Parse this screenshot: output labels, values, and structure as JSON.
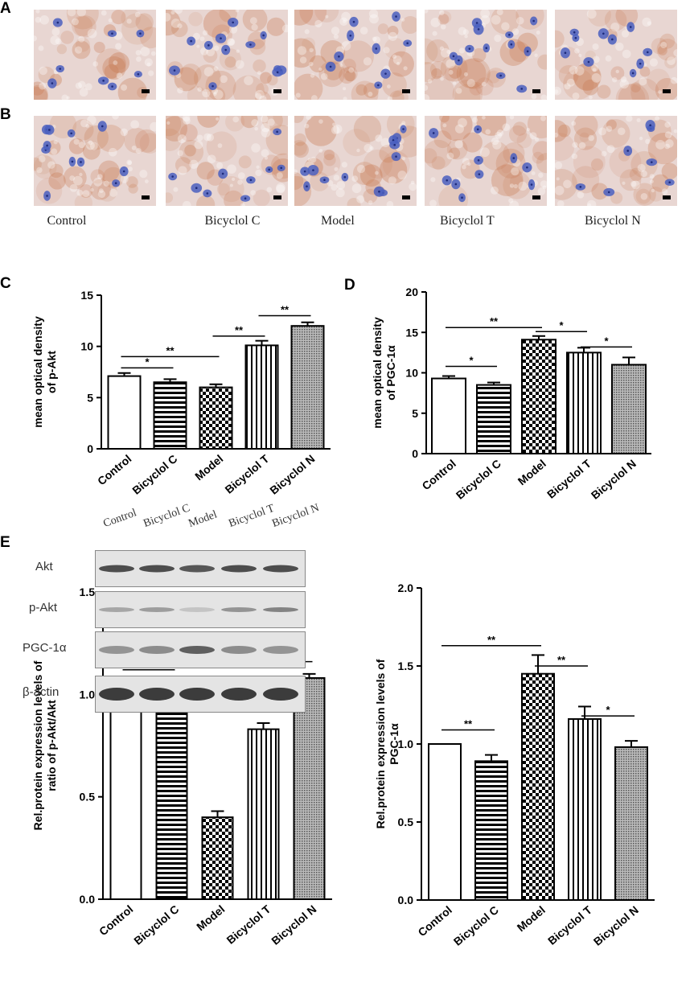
{
  "panels": {
    "a": "A",
    "b": "B",
    "c": "C",
    "d": "D",
    "e": "E"
  },
  "micro_groups": [
    "Control",
    "Bicyclol C",
    "Model",
    "Bicyclol T",
    "Bicyclol N"
  ],
  "blot": {
    "lanes": [
      "Control",
      "Bicyclol C",
      "Model",
      "Bicyclol T",
      "Bicyclol N"
    ],
    "rows": [
      "Akt",
      "p-Akt",
      "PGC-1α",
      "β-actin"
    ],
    "colors": {
      "membrane": "#e4e4e4",
      "band": "#333333"
    }
  },
  "colors": {
    "bar_stroke": "#000000",
    "bar_fill": "#ffffff",
    "tissue": "#e8d6d2",
    "nuclei": "#4a5fbf",
    "stain": "#c87a52"
  },
  "chart_data": [
    {
      "id": "chartC",
      "type": "bar",
      "categories": [
        "Control",
        "Bicyclol C",
        "Model",
        "Bicyclol T",
        "Bicyclol N"
      ],
      "values": [
        7.1,
        6.5,
        6.0,
        10.1,
        12.0
      ],
      "errors": [
        0.3,
        0.3,
        0.3,
        0.45,
        0.35
      ],
      "patterns": [
        "none",
        "hlines",
        "checker",
        "vlines",
        "dots"
      ],
      "ylabel": [
        "mean optical density",
        "of p-Akt"
      ],
      "ylim": [
        0,
        15
      ],
      "yticks": [
        0,
        5,
        10,
        15
      ],
      "significance": [
        {
          "from": 0,
          "to": 1,
          "y": 7.9,
          "label": "*"
        },
        {
          "from": 0,
          "to": 2,
          "y": 9.0,
          "label": "**"
        },
        {
          "from": 2,
          "to": 3,
          "y": 11.0,
          "label": "**"
        },
        {
          "from": 3,
          "to": 4,
          "y": 13.0,
          "label": "**"
        }
      ]
    },
    {
      "id": "chartD",
      "type": "bar",
      "categories": [
        "Control",
        "Bicyclol C",
        "Model",
        "Bicyclol T",
        "Bicyclol N"
      ],
      "values": [
        9.3,
        8.5,
        14.1,
        12.5,
        11.0
      ],
      "errors": [
        0.3,
        0.3,
        0.45,
        0.6,
        0.9
      ],
      "patterns": [
        "none",
        "hlines",
        "checker",
        "vlines",
        "dots"
      ],
      "ylabel": [
        "mean optical density",
        "of PGC-1α"
      ],
      "ylim": [
        0,
        20
      ],
      "yticks": [
        0,
        5,
        10,
        15,
        20
      ],
      "significance": [
        {
          "from": 0,
          "to": 1,
          "y": 10.8,
          "label": "*"
        },
        {
          "from": 0,
          "to": 2,
          "y": 15.6,
          "label": "**"
        },
        {
          "from": 2,
          "to": 3,
          "y": 15.1,
          "label": "*"
        },
        {
          "from": 3,
          "to": 4,
          "y": 13.2,
          "label": "*"
        }
      ]
    },
    {
      "id": "chartE1",
      "type": "bar",
      "categories": [
        "Control",
        "Bicyclol C",
        "Model",
        "Bicyclol T",
        "Bicyclol N"
      ],
      "values": [
        1.0,
        1.05,
        0.4,
        0.83,
        1.08
      ],
      "errors": [
        0.0,
        0.03,
        0.03,
        0.03,
        0.02
      ],
      "patterns": [
        "none",
        "hlines",
        "checker",
        "vlines",
        "dots"
      ],
      "ylabel": [
        "Rel.protein expression levels of",
        "ratio of p-Akt/Akt"
      ],
      "ylim": [
        0,
        1.5
      ],
      "yticks": [
        0.0,
        0.5,
        1.0,
        1.5
      ],
      "tickdec": 1,
      "significance": [
        {
          "from": 0,
          "to": 1,
          "y": 1.12,
          "label": "*"
        },
        {
          "from": 0,
          "to": 2,
          "y": 1.21,
          "label": "**"
        },
        {
          "from": 2,
          "to": 3,
          "y": 0.94,
          "label": "**"
        },
        {
          "from": 3,
          "to": 4,
          "y": 1.16,
          "label": "**"
        }
      ]
    },
    {
      "id": "chartE2",
      "type": "bar",
      "categories": [
        "Control",
        "Bicyclol C",
        "Model",
        "Bicyclol T",
        "Bicyclol N"
      ],
      "values": [
        1.0,
        0.89,
        1.45,
        1.16,
        0.98
      ],
      "errors": [
        0.0,
        0.04,
        0.12,
        0.08,
        0.04
      ],
      "patterns": [
        "none",
        "hlines",
        "checker",
        "vlines",
        "dots"
      ],
      "ylabel": [
        "Rel.protein expression levels of",
        "PGC-1α"
      ],
      "ylim": [
        0,
        2.0
      ],
      "yticks": [
        0.0,
        0.5,
        1.0,
        1.5,
        2.0
      ],
      "tickdec": 1,
      "significance": [
        {
          "from": 0,
          "to": 1,
          "y": 1.09,
          "label": "**"
        },
        {
          "from": 0,
          "to": 2,
          "y": 1.63,
          "label": "**"
        },
        {
          "from": 2,
          "to": 3,
          "y": 1.5,
          "label": "**"
        },
        {
          "from": 3,
          "to": 4,
          "y": 1.18,
          "label": "*"
        }
      ]
    }
  ]
}
